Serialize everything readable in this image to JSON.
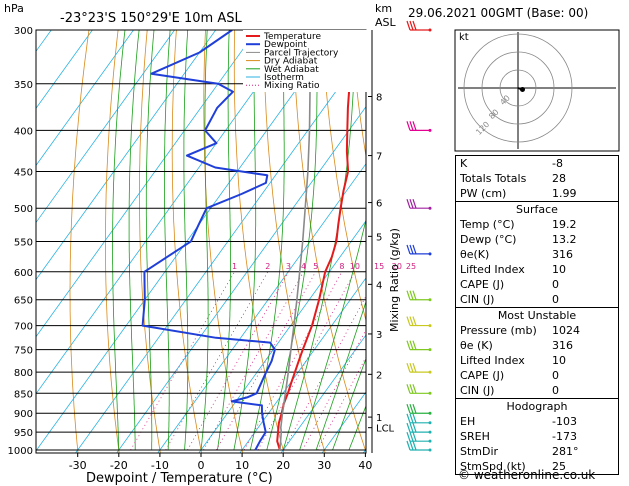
{
  "header": {
    "pressure_unit": "hPa",
    "location": "-23°23'S 150°29'E 10m ASL",
    "height_unit_km": "km",
    "height_unit_asl": "ASL",
    "datetime": "29.06.2021 00GMT (Base: 00)"
  },
  "chart_data": {
    "type": "line",
    "title": "-23°23'S 150°29'E 10m ASL",
    "xlabel": "Dewpoint / Temperature (°C)",
    "ylabel": "hPa",
    "xlim": [
      -35,
      40
    ],
    "ylim": [
      1000,
      300
    ],
    "x_ticks": [
      "-30",
      "-20",
      "-10",
      "0",
      "10",
      "20",
      "30",
      "40"
    ],
    "pressure_levels": [
      "300",
      "350",
      "400",
      "450",
      "500",
      "550",
      "600",
      "650",
      "700",
      "750",
      "800",
      "850",
      "900",
      "950",
      "1000"
    ],
    "km_ticks": [
      {
        "label": "8",
        "p": 363
      },
      {
        "label": "7",
        "p": 430
      },
      {
        "label": "6",
        "p": 492
      },
      {
        "label": "5",
        "p": 542
      },
      {
        "label": "4",
        "p": 622
      },
      {
        "label": "3",
        "p": 717
      },
      {
        "label": "2",
        "p": 805
      },
      {
        "label": "1",
        "p": 910
      },
      {
        "label": "LCL",
        "p": 938
      }
    ],
    "mixing_ratio_axis_label": "Mixing Ratio (g/kg)",
    "mixing_ratio_labels": [
      "1",
      "2",
      "3",
      "4",
      "5",
      "8",
      "10",
      "15",
      "20",
      "25"
    ],
    "legend": [
      "Temperature",
      "Dewpoint",
      "Parcel Trajectory",
      "Dry Adiabat",
      "Wet Adiabat",
      "Isotherm",
      "Mixing Ratio"
    ],
    "series": [
      {
        "name": "Temperature",
        "color": "#e41a1c",
        "points": [
          [
            1000,
            19.2
          ],
          [
            975,
            17
          ],
          [
            950,
            15.6
          ],
          [
            925,
            14.2
          ],
          [
            900,
            13.2
          ],
          [
            875,
            12.0
          ],
          [
            850,
            11.2
          ],
          [
            825,
            10.2
          ],
          [
            800,
            9.2
          ],
          [
            775,
            8.2
          ],
          [
            750,
            7.2
          ],
          [
            725,
            6.2
          ],
          [
            700,
            5.2
          ],
          [
            650,
            2.4
          ],
          [
            600,
            -1.0
          ],
          [
            575,
            -2.0
          ],
          [
            550,
            -3.6
          ],
          [
            525,
            -6.0
          ],
          [
            500,
            -8.4
          ],
          [
            475,
            -10.8
          ],
          [
            450,
            -13.0
          ],
          [
            425,
            -16.8
          ],
          [
            400,
            -20.4
          ],
          [
            375,
            -24.2
          ],
          [
            350,
            -28.0
          ],
          [
            325,
            -31.6
          ],
          [
            300,
            -35.6
          ]
        ]
      },
      {
        "name": "Dewpoint",
        "color": "#1f3fd8",
        "points": [
          [
            1000,
            13.2
          ],
          [
            975,
            12.8
          ],
          [
            950,
            12.6
          ],
          [
            925,
            10.5
          ],
          [
            900,
            8.4
          ],
          [
            880,
            7.0
          ],
          [
            870,
            -1.0
          ],
          [
            860,
            2.0
          ],
          [
            850,
            3.6
          ],
          [
            800,
            2.2
          ],
          [
            775,
            1.6
          ],
          [
            750,
            0.4
          ],
          [
            735,
            -2.0
          ],
          [
            725,
            -16.0
          ],
          [
            700,
            -36.0
          ],
          [
            650,
            -40.0
          ],
          [
            600,
            -45.0
          ],
          [
            550,
            -39.0
          ],
          [
            525,
            -40.0
          ],
          [
            500,
            -41.0
          ],
          [
            480,
            -35.0
          ],
          [
            465,
            -31.0
          ],
          [
            455,
            -32.0
          ],
          [
            445,
            -46.0
          ],
          [
            430,
            -55.0
          ],
          [
            415,
            -50.0
          ],
          [
            400,
            -55.0
          ],
          [
            375,
            -56.0
          ],
          [
            358,
            -55.0
          ],
          [
            350,
            -60.0
          ],
          [
            340,
            -78.0
          ],
          [
            320,
            -70.0
          ],
          [
            300,
            -66.0
          ]
        ]
      },
      {
        "name": "Parcel Trajectory",
        "color": "#8a8a8a",
        "points": [
          [
            1000,
            19.2
          ],
          [
            950,
            16.4
          ],
          [
            938,
            15.5
          ],
          [
            900,
            13.4
          ],
          [
            850,
            10.6
          ],
          [
            800,
            7.6
          ],
          [
            750,
            4.3
          ],
          [
            700,
            0.8
          ],
          [
            650,
            -3.0
          ],
          [
            600,
            -7.2
          ],
          [
            550,
            -11.8
          ],
          [
            500,
            -17.0
          ],
          [
            450,
            -22.8
          ],
          [
            400,
            -29.6
          ],
          [
            350,
            -37.6
          ],
          [
            300,
            -46.8
          ]
        ]
      }
    ],
    "wind_barbs": [
      {
        "p": 300,
        "color": "#e41a1c"
      },
      {
        "p": 400,
        "color": "#e40090"
      },
      {
        "p": 500,
        "color": "#a020a0"
      },
      {
        "p": 570,
        "color": "#1f3fd8"
      },
      {
        "p": 650,
        "color": "#7ec820"
      },
      {
        "p": 700,
        "color": "#c8c820"
      },
      {
        "p": 750,
        "color": "#7ec820"
      },
      {
        "p": 800,
        "color": "#c8c820"
      },
      {
        "p": 850,
        "color": "#7ec820"
      },
      {
        "p": 900,
        "color": "#2ab040"
      },
      {
        "p": 925,
        "color": "#20b0b0"
      },
      {
        "p": 950,
        "color": "#20b0b0"
      },
      {
        "p": 975,
        "color": "#20b0b0"
      },
      {
        "p": 1000,
        "color": "#20b0b0"
      }
    ]
  },
  "hodograph": {
    "label": "kt",
    "ring_labels": [
      "40",
      "80",
      "120"
    ],
    "points": [
      [
        0,
        0
      ],
      [
        1,
        0
      ],
      [
        2,
        1
      ],
      [
        4,
        2
      ],
      [
        6,
        2
      ],
      [
        8,
        3
      ],
      [
        9,
        3
      ]
    ]
  },
  "indices": {
    "rows": [
      {
        "label": "K",
        "value": "-8"
      },
      {
        "label": "Totals Totals",
        "value": "28"
      },
      {
        "label": "PW (cm)",
        "value": "1.99"
      }
    ],
    "surface": {
      "title": "Surface",
      "rows": [
        {
          "label": "Temp (°C)",
          "value": "19.2"
        },
        {
          "label": "Dewp (°C)",
          "value": "13.2"
        },
        {
          "label": "θe(K)",
          "value": "316"
        },
        {
          "label": "Lifted Index",
          "value": "10"
        },
        {
          "label": "CAPE (J)",
          "value": "0"
        },
        {
          "label": "CIN (J)",
          "value": "0"
        }
      ]
    },
    "most_unstable": {
      "title": "Most Unstable",
      "rows": [
        {
          "label": "Pressure (mb)",
          "value": "1024"
        },
        {
          "label": "θe (K)",
          "value": "316"
        },
        {
          "label": "Lifted Index",
          "value": "10"
        },
        {
          "label": "CAPE (J)",
          "value": "0"
        },
        {
          "label": "CIN (J)",
          "value": "0"
        }
      ]
    },
    "hodograph_table": {
      "title": "Hodograph",
      "rows": [
        {
          "label": "EH",
          "value": "-103"
        },
        {
          "label": "SREH",
          "value": "-173"
        },
        {
          "label": "StmDir",
          "value": "281°"
        },
        {
          "label": "StmSpd (kt)",
          "value": "25"
        }
      ]
    }
  },
  "footer": {
    "copyright": "© weatheronline.co.uk"
  },
  "colors": {
    "temperature": "#e41a1c",
    "dewpoint": "#1f3fd8",
    "parcel": "#8a8a8a",
    "dry_adiabat": "#d98a1a",
    "wet_adiabat": "#1aa01a",
    "isotherm": "#2bb3e0",
    "mixing_ratio": "#d02080"
  }
}
